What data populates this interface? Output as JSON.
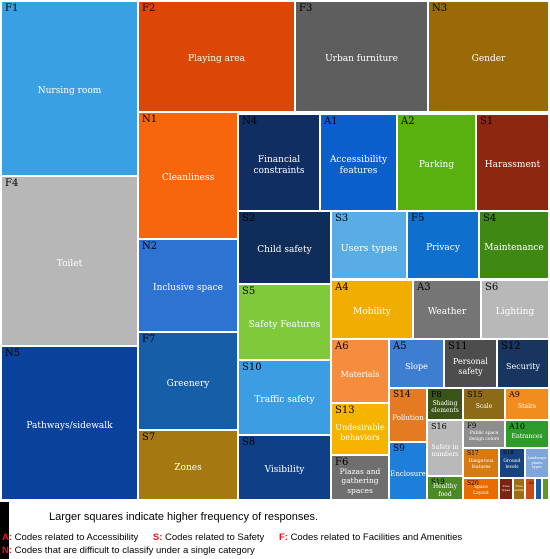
{
  "chart_data": {
    "type": "treemap",
    "note": "Larger squares indicate higher frequency of responses.",
    "legend": [
      {
        "key": "A:",
        "text": "Codes related to Accessibility"
      },
      {
        "key": "S:",
        "text": "Codes related to Safety"
      },
      {
        "key": "F:",
        "text": "Codes related to Facilities and Amenities"
      },
      {
        "key": "N:",
        "text": "Codes that are difficult to classify under a single category"
      }
    ],
    "cells": [
      {
        "code": "F1",
        "label": "Nursing room",
        "color": "#3aa0e4"
      },
      {
        "code": "F4",
        "label": "Toilet",
        "color": "#b7b7b7"
      },
      {
        "code": "N5",
        "label": "Pathways/sidewalk",
        "color": "#0a419b"
      },
      {
        "code": "F2",
        "label": "Playing area",
        "color": "#dc4708"
      },
      {
        "code": "F3",
        "label": "Urban furniture",
        "color": "#5e5e5e"
      },
      {
        "code": "N3",
        "label": "Gender",
        "color": "#9a6a06"
      },
      {
        "code": "N1",
        "label": "Cleanliness",
        "color": "#f7660c"
      },
      {
        "code": "N2",
        "label": "Inclusive space",
        "color": "#2c73d2"
      },
      {
        "code": "F7",
        "label": "Greenery",
        "color": "#175ea8"
      },
      {
        "code": "S7",
        "label": "Zones",
        "color": "#a57812"
      },
      {
        "code": "N4",
        "label": "Financial constraints",
        "color": "#112e63"
      },
      {
        "code": "A1",
        "label": "Accessibility features",
        "color": "#0a5fcd"
      },
      {
        "code": "A2",
        "label": "Parking",
        "color": "#58b10f"
      },
      {
        "code": "S1",
        "label": "Harassment",
        "color": "#8e2710"
      },
      {
        "code": "S2",
        "label": "Child safety",
        "color": "#0f2d59"
      },
      {
        "code": "S3",
        "label": "Users types",
        "color": "#5aade4"
      },
      {
        "code": "F5",
        "label": "Privacy",
        "color": "#0e6fcc"
      },
      {
        "code": "S4",
        "label": "Maintenance",
        "color": "#3f8814"
      },
      {
        "code": "S5",
        "label": "Safety Features",
        "color": "#7fc93a"
      },
      {
        "code": "A4",
        "label": "Mobility",
        "color": "#f2ae00"
      },
      {
        "code": "A3",
        "label": "Weather",
        "color": "#757575"
      },
      {
        "code": "S6",
        "label": "Lighting",
        "color": "#b8b8b8"
      },
      {
        "code": "S10",
        "label": "Traffic safety",
        "color": "#3c9de3"
      },
      {
        "code": "S8",
        "label": "Visibility",
        "color": "#0f3f86"
      },
      {
        "code": "A6",
        "label": "Materials",
        "color": "#f68d3e"
      },
      {
        "code": "A5",
        "label": "Slope",
        "color": "#3d7ed1"
      },
      {
        "code": "S11",
        "label": "Personal safety",
        "color": "#4d4d4d"
      },
      {
        "code": "S12",
        "label": "Security",
        "color": "#17355f"
      },
      {
        "code": "S13",
        "label": "Undesirable behaviors",
        "color": "#f4b400"
      },
      {
        "code": "F6",
        "label": "Plazas and gathering spaces",
        "color": "#6f6f6f"
      },
      {
        "code": "S14",
        "label": "Pollution",
        "color": "#e47b22"
      },
      {
        "code": "F8",
        "label": "Shading elements",
        "color": "#3b5316"
      },
      {
        "code": "S15",
        "label": "Scale",
        "color": "#8c6a18"
      },
      {
        "code": "A9",
        "label": "Stairs",
        "color": "#f18c1e"
      },
      {
        "code": "F9",
        "label": "Public space design colors",
        "color": "#8e8e8e"
      },
      {
        "code": "A10",
        "label": "Entrances",
        "color": "#2e9c2a"
      },
      {
        "code": "S16",
        "label": "Safety in numbers",
        "color": "#b9b9b9"
      },
      {
        "code": "S9",
        "label": "Enclosure",
        "color": "#1d7fd9"
      },
      {
        "code": "S19",
        "label": "Healthy food",
        "color": "#4c8a24"
      },
      {
        "code": "S17",
        "label": "Dangerous features",
        "color": "#d77a12"
      },
      {
        "code": "S18",
        "label": "Ground levels",
        "color": "#16437d"
      },
      {
        "code": "",
        "label": "Landscape plants types",
        "color": "#7fa6d8"
      },
      {
        "code": "S20",
        "label": "Space Layout",
        "color": "#e96c00"
      },
      {
        "code": "",
        "label": "Tree types",
        "color": "#7b2310"
      },
      {
        "code": "",
        "label": "Tree plantation",
        "color": "#a06d12"
      },
      {
        "code": "S22",
        "label": "",
        "color": "#c84c16"
      },
      {
        "code": "",
        "label": "",
        "color": "#1d5aa5"
      },
      {
        "code": "",
        "label": "",
        "color": "#5f9a26"
      }
    ]
  }
}
